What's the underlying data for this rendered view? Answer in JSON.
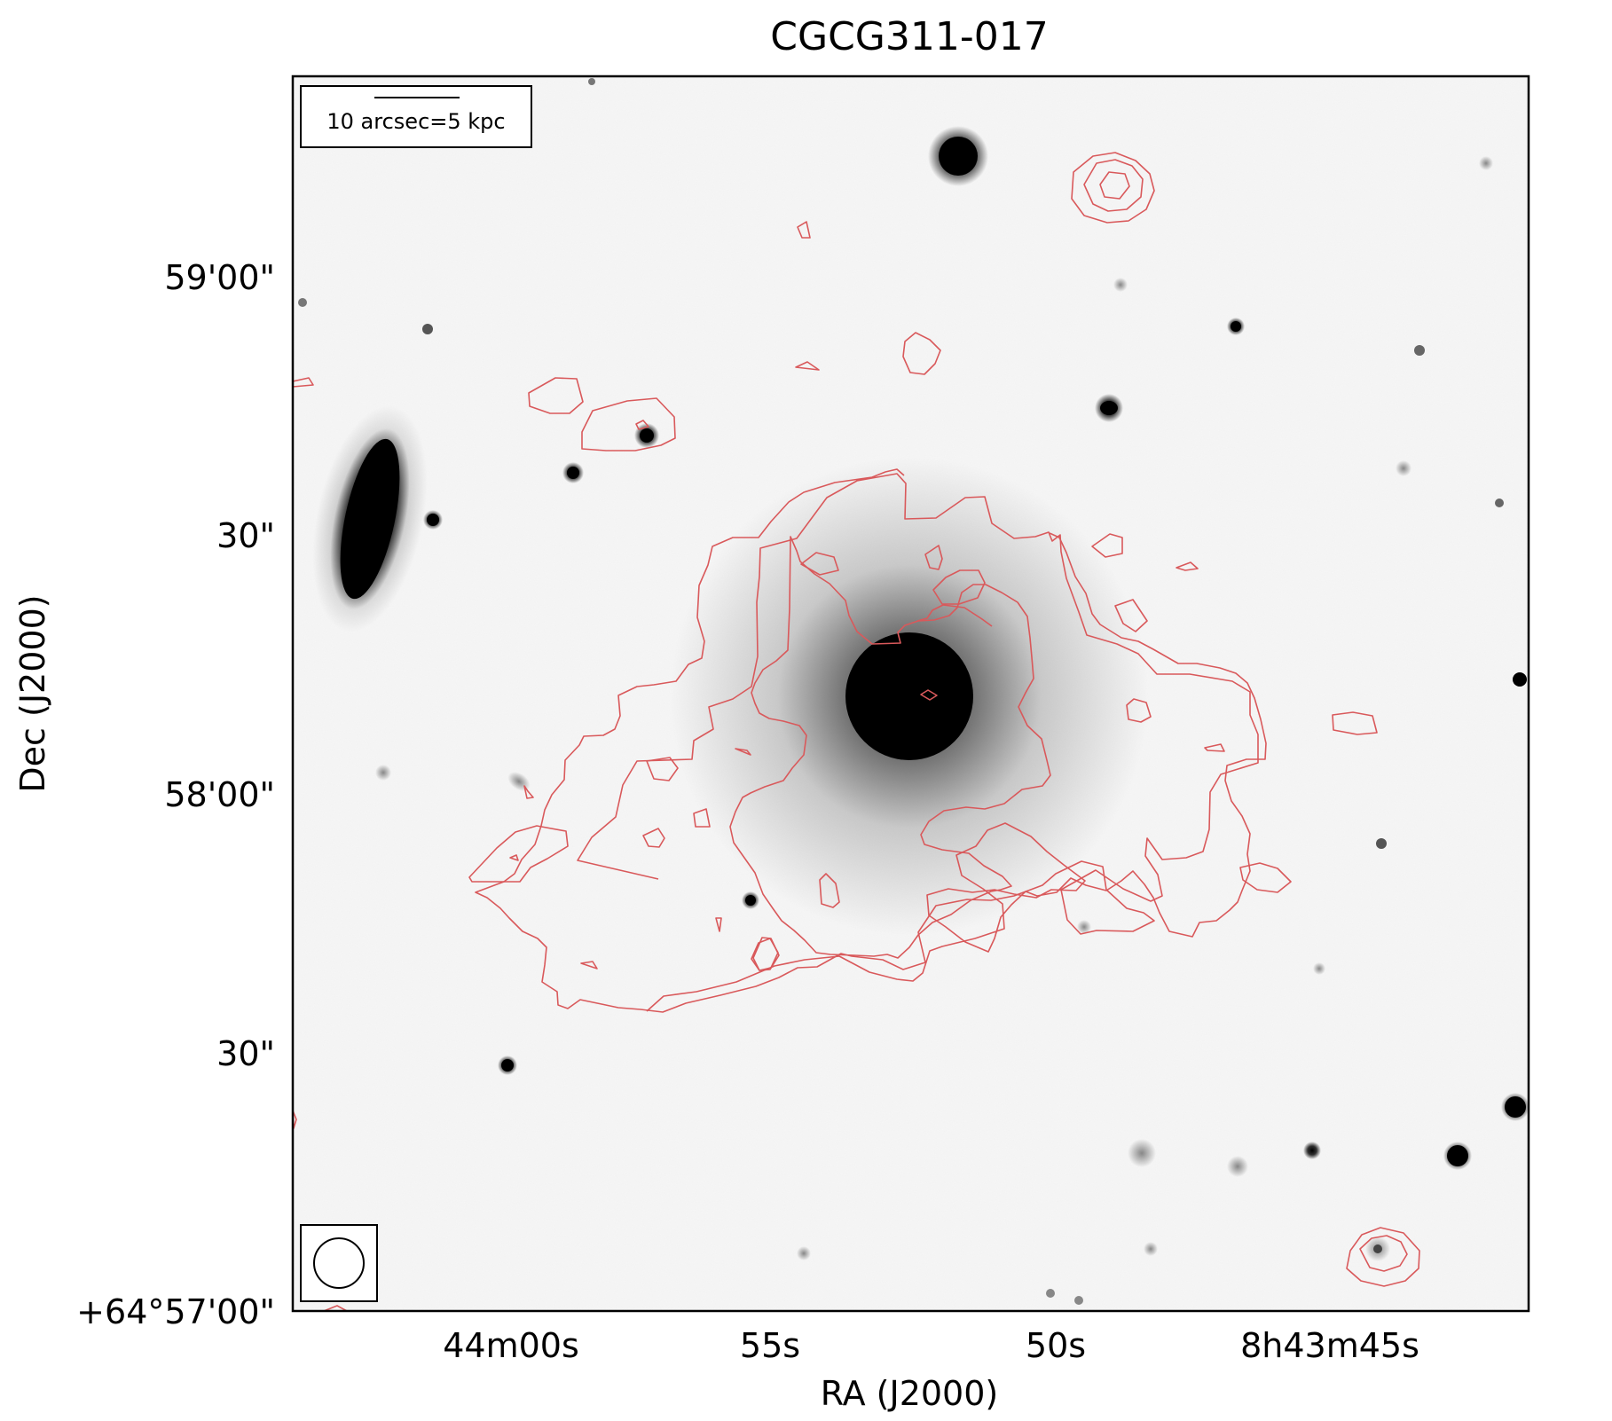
{
  "figure": {
    "title": "CGCG311-017",
    "xlabel": "RA (J2000)",
    "ylabel": "Dec (J2000)",
    "ra_ticks": [
      "44m00s",
      "55s",
      "50s",
      "8h43m45s"
    ],
    "dec_ticks": [
      "59'00\"",
      "30\"",
      "58'00\"",
      "30\"",
      "+64°57'00\""
    ],
    "scale_bar_label": "10 arcsec=5 kpc",
    "contour_color": "#d9595b",
    "image_colormap": "gray_r",
    "beam_marker": "circle"
  }
}
